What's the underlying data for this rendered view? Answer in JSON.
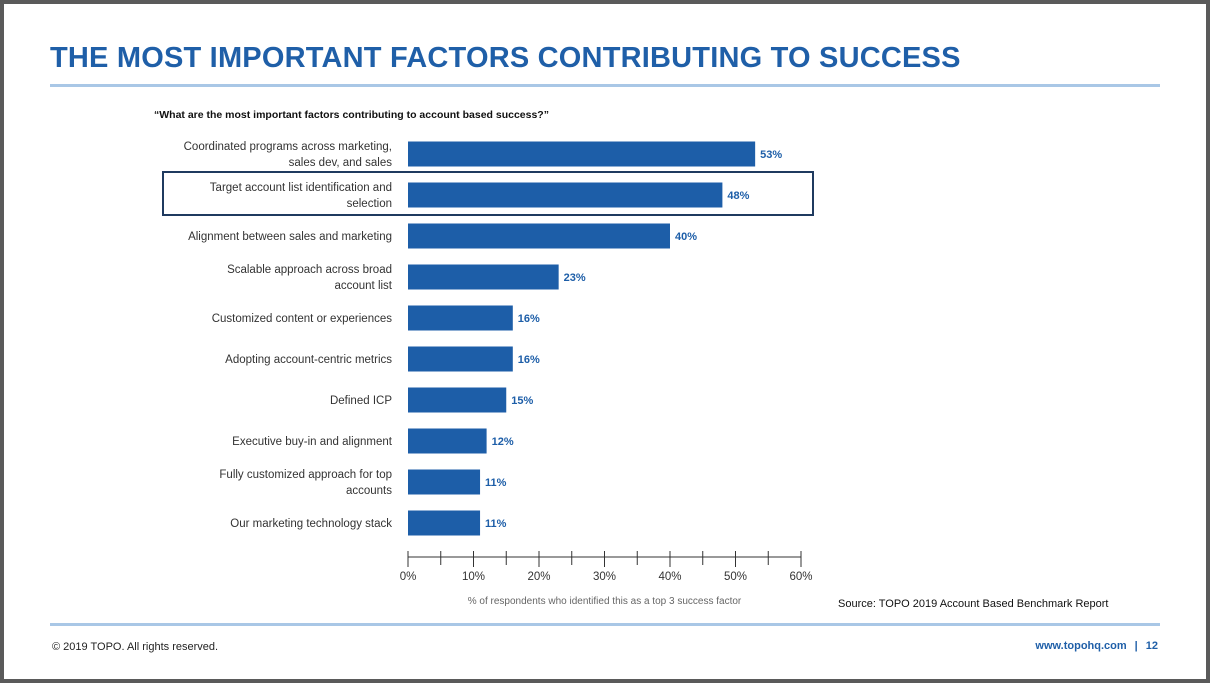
{
  "slide": {
    "title": "THE MOST IMPORTANT FACTORS CONTRIBUTING TO SUCCESS",
    "source": "Source: TOPO 2019 Account Based Benchmark Report",
    "copyright": "© 2019 TOPO. All rights reserved.",
    "website": "www.topohq.com",
    "separator": "|",
    "page_number": "12"
  },
  "colors": {
    "title": "#1f5fa8",
    "bar": "#1d5ea8",
    "bar_label": "#1d5ea8",
    "highlight_border": "#1f3a5f",
    "rule": "#a9c7e6"
  },
  "chart_data": {
    "type": "bar",
    "orientation": "horizontal",
    "title": "“What are the most important factors contributing to account based success?”",
    "xlabel": "% of respondents who identified this as a top 3 success factor",
    "ylabel": "",
    "xlim": [
      0,
      60
    ],
    "x_ticks": [
      "0%",
      "10%",
      "20%",
      "30%",
      "40%",
      "50%",
      "60%"
    ],
    "x_tick_values": [
      0,
      10,
      20,
      30,
      40,
      50,
      60
    ],
    "categories": [
      [
        "Coordinated programs across marketing,",
        "sales dev, and sales"
      ],
      [
        "Target account list identification and",
        "selection"
      ],
      [
        "Alignment between sales and marketing"
      ],
      [
        "Scalable approach across broad",
        "account list"
      ],
      [
        "Customized content or experiences"
      ],
      [
        "Adopting account-centric metrics"
      ],
      [
        "Defined ICP"
      ],
      [
        "Executive buy-in and alignment"
      ],
      [
        "Fully customized approach for top",
        "accounts"
      ],
      [
        "Our marketing technology stack"
      ]
    ],
    "values": [
      53,
      48,
      40,
      23,
      16,
      16,
      15,
      12,
      11,
      11
    ],
    "value_labels": [
      "53%",
      "48%",
      "40%",
      "23%",
      "16%",
      "16%",
      "15%",
      "12%",
      "11%",
      "11%"
    ],
    "highlighted_index": 1,
    "grid": false,
    "legend": "none"
  }
}
